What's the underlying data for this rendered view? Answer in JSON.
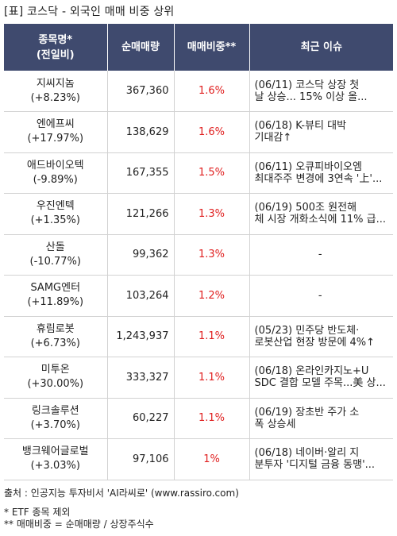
{
  "title": "[표] 코스닥 - 외국인 매매 비중 상위",
  "headers": {
    "name_line1": "종목명*",
    "name_line2": "(전일비)",
    "volume": "순매매량",
    "ratio": "매매비중**",
    "issue": "최근 이슈"
  },
  "rows": [
    {
      "name": "지씨지놈",
      "change": "(+8.23%)",
      "volume": "367,360",
      "ratio": "1.6%",
      "issue_line1": "(06/11) 코스닥 상장 첫",
      "issue_line2": "날 상승... 15% 이상 올..."
    },
    {
      "name": "엔에프씨",
      "change": "(+17.97%)",
      "volume": "138,629",
      "ratio": "1.6%",
      "issue_line1": "(06/18) K-뷰티 대박",
      "issue_line2": "기대감↑"
    },
    {
      "name": "애드바이오텍",
      "change": "(-9.89%)",
      "volume": "167,355",
      "ratio": "1.5%",
      "issue_line1": "(06/11) 오큐피바이오엠",
      "issue_line2": "최대주주 변경에 3연속 '上'..."
    },
    {
      "name": "우진엔텍",
      "change": "(+1.35%)",
      "volume": "121,266",
      "ratio": "1.3%",
      "issue_line1": "(06/19) 500조 원전해",
      "issue_line2": "체 시장 개화소식에 11% 급..."
    },
    {
      "name": "산돌",
      "change": "(-10.77%)",
      "volume": "99,362",
      "ratio": "1.3%",
      "issue_line1": "-",
      "issue_line2": ""
    },
    {
      "name": "SAMG엔터",
      "change": "(+11.89%)",
      "volume": "103,264",
      "ratio": "1.2%",
      "issue_line1": "-",
      "issue_line2": ""
    },
    {
      "name": "휴림로봇",
      "change": "(+6.73%)",
      "volume": "1,243,937",
      "ratio": "1.1%",
      "issue_line1": "(05/23) 민주당 반도체·",
      "issue_line2": "로봇산업 현장 방문에 4%↑"
    },
    {
      "name": "미투온",
      "change": "(+30.00%)",
      "volume": "333,327",
      "ratio": "1.1%",
      "issue_line1": "(06/18) 온라인카지노+U",
      "issue_line2": "SDC 결합 모델 주목...美 상..."
    },
    {
      "name": "링크솔루션",
      "change": "(+3.70%)",
      "volume": "60,227",
      "ratio": "1.1%",
      "issue_line1": "(06/19) 장초반 주가 소",
      "issue_line2": "폭 상승세"
    },
    {
      "name": "뱅크웨어글로벌",
      "change": "(+3.03%)",
      "volume": "97,106",
      "ratio": "1%",
      "issue_line1": "(06/18) 네이버·알리 지",
      "issue_line2": "분투자 '디지털 금융 동맹'..."
    }
  ],
  "footer": {
    "source": "출처 : 인공지능 투자비서 'AI라씨로' (www.rassiro.com)",
    "note1": "* ETF 종목 제외",
    "note2": "** 매매비중 = 순매매량 / 상장주식수"
  },
  "colors": {
    "header_bg": "#3f4a6e",
    "ratio_text": "#e02020",
    "grid_line": "#d2d2d2"
  }
}
